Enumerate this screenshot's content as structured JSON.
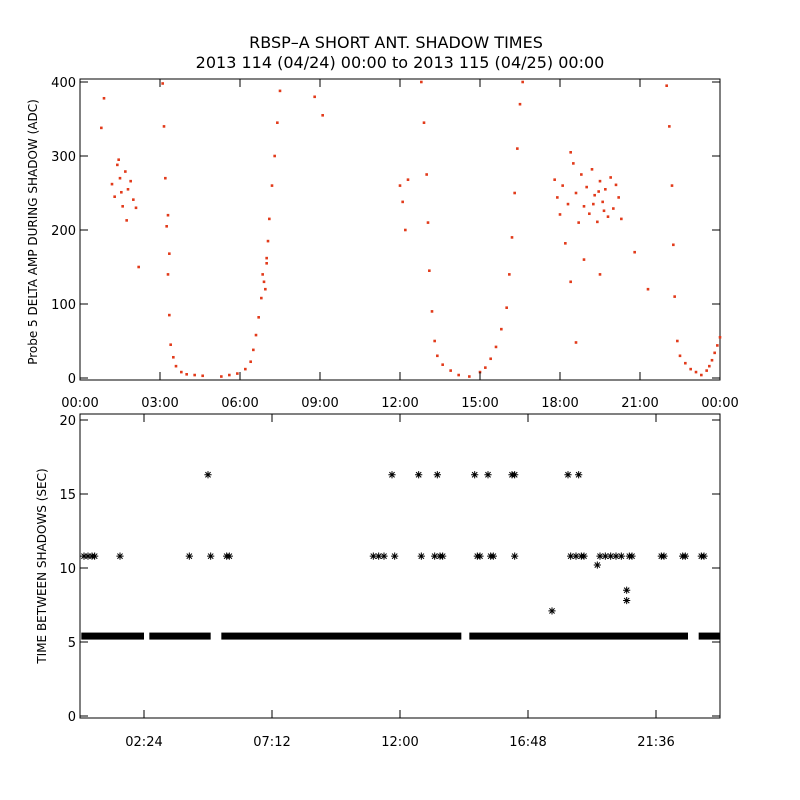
{
  "title_line1": "RBSP–A SHORT ANT. SHADOW TIMES",
  "title_line2": "2013 114 (04/24) 00:00 to 2013 115 (04/25) 00:00",
  "colors": {
    "top_points": "#e23a1a",
    "bottom_points": "#000000",
    "axes": "#000000"
  },
  "chart_data": [
    {
      "type": "scatter",
      "ylabel": "Probe 5 DELTA AMP DURING SHADOW (ADC)",
      "xlim_hours": [
        0,
        24
      ],
      "ylim": [
        0,
        400
      ],
      "x_tick_labels": [
        "00:00",
        "03:00",
        "06:00",
        "09:00",
        "12:00",
        "15:00",
        "18:00",
        "21:00",
        "00:00"
      ],
      "y_tick_labels": [
        "0",
        "100",
        "200",
        "300",
        "400"
      ],
      "series": [
        {
          "points": [
            [
              1.2,
              262
            ],
            [
              1.3,
              245
            ],
            [
              1.4,
              288
            ],
            [
              1.5,
              270
            ],
            [
              1.6,
              232
            ],
            [
              1.7,
              279
            ],
            [
              1.8,
              255
            ],
            [
              1.9,
              266
            ],
            [
              2.0,
              241
            ],
            [
              1.45,
              295
            ],
            [
              1.55,
              251
            ],
            [
              1.75,
              213
            ],
            [
              0.8,
              338
            ],
            [
              0.9,
              378
            ],
            [
              2.1,
              230
            ],
            [
              3.1,
              398
            ],
            [
              3.15,
              340
            ],
            [
              3.2,
              270
            ],
            [
              3.25,
              205
            ],
            [
              3.3,
              140
            ],
            [
              3.35,
              85
            ],
            [
              3.4,
              45
            ],
            [
              3.5,
              28
            ],
            [
              3.6,
              16
            ],
            [
              3.8,
              8
            ],
            [
              4.0,
              5
            ],
            [
              4.3,
              4
            ],
            [
              4.6,
              3
            ],
            [
              5.3,
              2
            ],
            [
              5.6,
              4
            ],
            [
              5.9,
              6
            ],
            [
              6.2,
              12
            ],
            [
              6.4,
              22
            ],
            [
              6.5,
              38
            ],
            [
              6.6,
              58
            ],
            [
              6.7,
              82
            ],
            [
              6.8,
              108
            ],
            [
              6.9,
              130
            ],
            [
              7.0,
              155
            ],
            [
              7.05,
              185
            ],
            [
              7.1,
              215
            ],
            [
              7.2,
              260
            ],
            [
              7.3,
              300
            ],
            [
              7.4,
              345
            ],
            [
              7.5,
              388
            ],
            [
              6.85,
              140
            ],
            [
              6.95,
              120
            ],
            [
              7.0,
              162
            ],
            [
              8.8,
              380
            ],
            [
              9.1,
              355
            ],
            [
              3.3,
              220
            ],
            [
              3.35,
              168
            ],
            [
              2.2,
              150
            ],
            [
              12.0,
              260
            ],
            [
              12.1,
              238
            ],
            [
              12.2,
              200
            ],
            [
              12.3,
              268
            ],
            [
              12.8,
              400
            ],
            [
              12.9,
              345
            ],
            [
              13.0,
              275
            ],
            [
              13.05,
              210
            ],
            [
              13.1,
              145
            ],
            [
              13.2,
              90
            ],
            [
              13.3,
              50
            ],
            [
              13.4,
              30
            ],
            [
              13.6,
              18
            ],
            [
              13.9,
              10
            ],
            [
              14.2,
              4
            ],
            [
              14.6,
              2
            ],
            [
              15.0,
              8
            ],
            [
              15.2,
              14
            ],
            [
              15.4,
              26
            ],
            [
              15.6,
              42
            ],
            [
              15.8,
              66
            ],
            [
              16.0,
              95
            ],
            [
              16.1,
              140
            ],
            [
              16.2,
              190
            ],
            [
              16.3,
              250
            ],
            [
              16.4,
              310
            ],
            [
              16.5,
              370
            ],
            [
              16.6,
              400
            ],
            [
              17.8,
              268
            ],
            [
              17.9,
              244
            ],
            [
              18.0,
              221
            ],
            [
              18.1,
              260
            ],
            [
              18.3,
              235
            ],
            [
              18.5,
              290
            ],
            [
              18.6,
              250
            ],
            [
              18.7,
              210
            ],
            [
              18.8,
              275
            ],
            [
              18.9,
              232
            ],
            [
              19.0,
              258
            ],
            [
              19.1,
              222
            ],
            [
              19.2,
              282
            ],
            [
              19.3,
              247
            ],
            [
              19.4,
              211
            ],
            [
              19.5,
              266
            ],
            [
              19.6,
              238
            ],
            [
              19.7,
              255
            ],
            [
              19.8,
              218
            ],
            [
              19.9,
              271
            ],
            [
              20.0,
              229
            ],
            [
              20.1,
              261
            ],
            [
              20.2,
              244
            ],
            [
              20.3,
              215
            ],
            [
              19.25,
              235
            ],
            [
              19.45,
              252
            ],
            [
              19.65,
              226
            ],
            [
              18.4,
              305
            ],
            [
              18.2,
              182
            ],
            [
              18.9,
              160
            ],
            [
              19.5,
              140
            ],
            [
              18.4,
              130
            ],
            [
              18.6,
              48
            ],
            [
              20.8,
              170
            ],
            [
              21.3,
              120
            ],
            [
              22.0,
              395
            ],
            [
              22.1,
              340
            ],
            [
              22.2,
              260
            ],
            [
              22.25,
              180
            ],
            [
              22.3,
              110
            ],
            [
              22.4,
              50
            ],
            [
              22.5,
              30
            ],
            [
              22.7,
              20
            ],
            [
              22.9,
              12
            ],
            [
              23.1,
              8
            ],
            [
              23.3,
              4
            ],
            [
              23.5,
              10
            ],
            [
              23.6,
              16
            ],
            [
              23.7,
              24
            ],
            [
              23.8,
              34
            ],
            [
              23.9,
              44
            ],
            [
              24.0,
              55
            ]
          ]
        }
      ]
    },
    {
      "type": "scatter",
      "ylabel": "TIME BETWEEN SHADOWS (SEC)",
      "xlim_hours": [
        0,
        24
      ],
      "ylim": [
        0,
        20
      ],
      "x_tick_labels": [
        "02:24",
        "07:12",
        "12:00",
        "16:48",
        "21:36"
      ],
      "y_tick_labels": [
        "0",
        "5",
        "10",
        "15",
        "20"
      ],
      "baseline": {
        "value": 5.4,
        "ranges_hours": [
          [
            0.05,
            2.4
          ],
          [
            2.6,
            4.9
          ],
          [
            5.3,
            14.3
          ],
          [
            14.6,
            22.8
          ],
          [
            23.2,
            24.0
          ]
        ]
      },
      "series": [
        {
          "points": [
            [
              0.15,
              10.8
            ],
            [
              0.3,
              10.8
            ],
            [
              0.45,
              10.8
            ],
            [
              0.55,
              10.8
            ],
            [
              1.5,
              10.8
            ],
            [
              4.1,
              10.8
            ],
            [
              4.8,
              16.3
            ],
            [
              4.9,
              10.8
            ],
            [
              5.5,
              10.8
            ],
            [
              5.6,
              10.8
            ],
            [
              11.0,
              10.8
            ],
            [
              11.2,
              10.8
            ],
            [
              11.4,
              10.8
            ],
            [
              11.7,
              16.3
            ],
            [
              11.8,
              10.8
            ],
            [
              12.7,
              16.3
            ],
            [
              12.8,
              10.8
            ],
            [
              13.3,
              10.8
            ],
            [
              13.4,
              16.3
            ],
            [
              13.5,
              10.8
            ],
            [
              13.6,
              10.8
            ],
            [
              14.8,
              16.3
            ],
            [
              14.9,
              10.8
            ],
            [
              15.0,
              10.8
            ],
            [
              15.3,
              16.3
            ],
            [
              15.4,
              10.8
            ],
            [
              15.5,
              10.8
            ],
            [
              16.2,
              16.3
            ],
            [
              16.3,
              16.3
            ],
            [
              16.3,
              10.8
            ],
            [
              17.7,
              7.1
            ],
            [
              18.3,
              16.3
            ],
            [
              18.4,
              10.8
            ],
            [
              18.6,
              10.8
            ],
            [
              18.7,
              16.3
            ],
            [
              18.8,
              10.8
            ],
            [
              18.9,
              10.8
            ],
            [
              19.4,
              10.2
            ],
            [
              19.5,
              10.8
            ],
            [
              19.7,
              10.8
            ],
            [
              19.9,
              10.8
            ],
            [
              20.1,
              10.8
            ],
            [
              20.3,
              10.8
            ],
            [
              20.5,
              8.5
            ],
            [
              20.5,
              7.8
            ],
            [
              20.6,
              10.8
            ],
            [
              20.7,
              10.8
            ],
            [
              21.8,
              10.8
            ],
            [
              21.9,
              10.8
            ],
            [
              22.6,
              10.8
            ],
            [
              22.7,
              10.8
            ],
            [
              23.3,
              10.8
            ],
            [
              23.4,
              10.8
            ]
          ]
        }
      ]
    }
  ]
}
